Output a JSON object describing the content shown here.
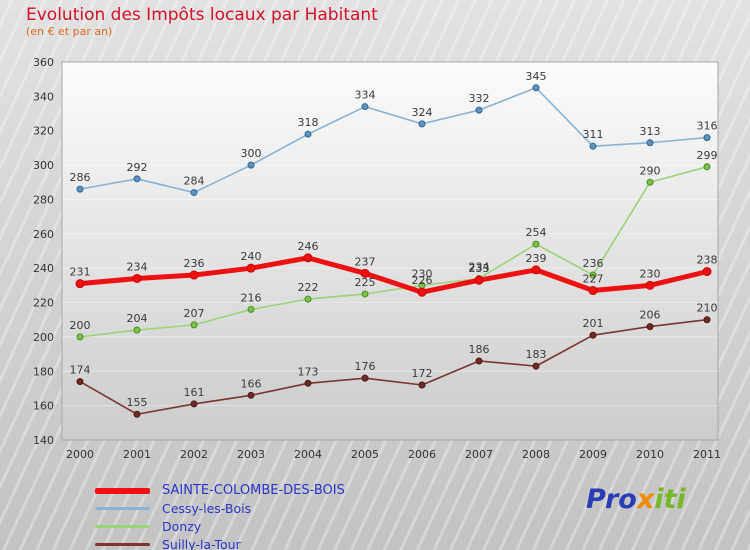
{
  "header": {
    "title": "Evolution des Impôts locaux par Habitant",
    "subtitle": "(en € et par an)",
    "title_color": "#d61025",
    "subtitle_color": "#dd6a1e"
  },
  "chart_data": {
    "type": "line",
    "title": "Evolution des Impôts locaux par Habitant",
    "subtitle": "(en € et par an)",
    "categories": [
      "2000",
      "2001",
      "2002",
      "2003",
      "2004",
      "2005",
      "2006",
      "2007",
      "2008",
      "2009",
      "2010",
      "2011"
    ],
    "ylim": [
      140,
      360
    ],
    "ytick_step": 20,
    "grid": false,
    "legend_position": "bottom-left",
    "series": [
      {
        "name": "SAINTE-COLOMBE-DES-BOIS",
        "color": "#ee1111",
        "marker_fill": "#ee1111",
        "marker_stroke": "#cc0000",
        "line_width": 5,
        "values": [
          231,
          234,
          236,
          240,
          246,
          237,
          226,
          233,
          239,
          227,
          230,
          238
        ]
      },
      {
        "name": "Cessy-les-Bois",
        "color": "#88b2d6",
        "marker_fill": "#5d94c4",
        "marker_stroke": "#33648f",
        "line_width": 1.6,
        "values": [
          286,
          292,
          284,
          300,
          318,
          334,
          324,
          332,
          345,
          311,
          313,
          316
        ]
      },
      {
        "name": "Donzy",
        "color": "#9ad379",
        "marker_fill": "#7cc24f",
        "marker_stroke": "#4c8a22",
        "line_width": 1.6,
        "values": [
          200,
          204,
          207,
          216,
          222,
          225,
          230,
          234,
          254,
          236,
          290,
          299
        ]
      },
      {
        "name": "Suilly-la-Tour",
        "color": "#7a352e",
        "marker_fill": "#6e2a24",
        "marker_stroke": "#4a1a16",
        "line_width": 1.6,
        "values": [
          174,
          155,
          161,
          166,
          173,
          176,
          172,
          186,
          183,
          201,
          206,
          210
        ]
      }
    ]
  },
  "legend": {
    "text_color": "#2a35c8"
  },
  "logo": {
    "parts": [
      {
        "text": "Pro",
        "color": "#2b3db5"
      },
      {
        "text": "x",
        "color": "#f08a00"
      },
      {
        "text": "iti",
        "color": "#76b82a"
      }
    ]
  }
}
